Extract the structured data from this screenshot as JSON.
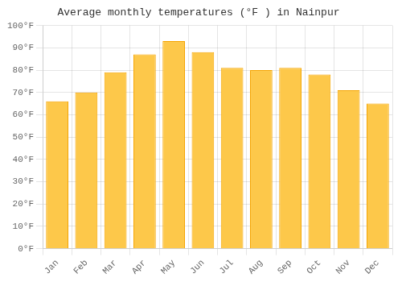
{
  "chart_data": {
    "type": "bar",
    "title": "Average monthly temperatures (°F ) in Nainpur",
    "categories": [
      "Jan",
      "Feb",
      "Mar",
      "Apr",
      "May",
      "Jun",
      "Jul",
      "Aug",
      "Sep",
      "Oct",
      "Nov",
      "Dec"
    ],
    "values": [
      66,
      70,
      79,
      87,
      93,
      88,
      81,
      80,
      81,
      78,
      71,
      65
    ],
    "color": "#FDC84A",
    "ylim": [
      0,
      100
    ],
    "yticks": [
      {
        "value": 0,
        "label": "0°F"
      },
      {
        "value": 10,
        "label": "10°F"
      },
      {
        "value": 20,
        "label": "20°F"
      },
      {
        "value": 30,
        "label": "30°F"
      },
      {
        "value": 40,
        "label": "40°F"
      },
      {
        "value": 50,
        "label": "50°F"
      },
      {
        "value": 60,
        "label": "60°F"
      },
      {
        "value": 70,
        "label": "70°F"
      },
      {
        "value": 80,
        "label": "80°F"
      },
      {
        "value": 90,
        "label": "90°F"
      },
      {
        "value": 100,
        "label": "100°F"
      }
    ],
    "grid": true
  }
}
